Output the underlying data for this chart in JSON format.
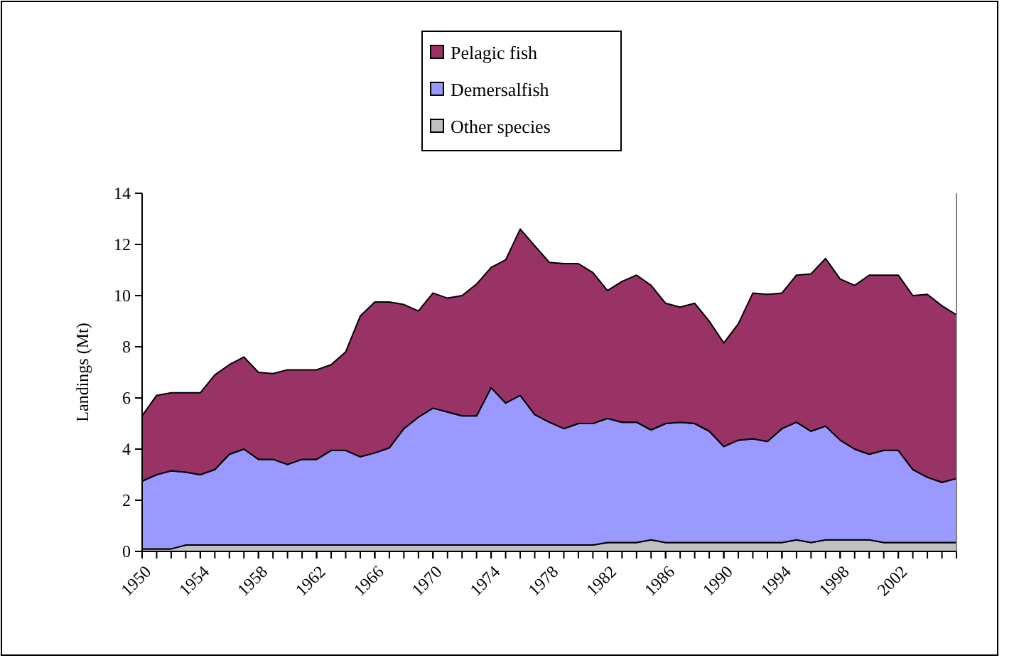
{
  "chart_data": {
    "type": "area",
    "stacked": true,
    "ylabel": "Landings (Mt)",
    "legend": "top",
    "x": [
      1950,
      1951,
      1952,
      1953,
      1954,
      1955,
      1956,
      1957,
      1958,
      1959,
      1960,
      1961,
      1962,
      1963,
      1964,
      1965,
      1966,
      1967,
      1968,
      1969,
      1970,
      1971,
      1972,
      1973,
      1974,
      1975,
      1976,
      1977,
      1978,
      1979,
      1980,
      1981,
      1982,
      1983,
      1984,
      1985,
      1986,
      1987,
      1988,
      1989,
      1990,
      1991,
      1992,
      1993,
      1994,
      1995,
      1996,
      1997,
      1998,
      1999,
      2000,
      2001,
      2002,
      2003,
      2004,
      2005,
      2006
    ],
    "xlim": [
      1950,
      2006
    ],
    "xticks": [
      1950,
      1954,
      1958,
      1962,
      1966,
      1970,
      1974,
      1978,
      1982,
      1986,
      1990,
      1994,
      1998,
      2002
    ],
    "ylim": [
      0,
      14
    ],
    "yticks": [
      0,
      2,
      4,
      6,
      8,
      10,
      12,
      14
    ],
    "series": [
      {
        "name": "Other species",
        "color": "#c0c0c0",
        "values": [
          0.1,
          0.1,
          0.1,
          0.25,
          0.25,
          0.25,
          0.25,
          0.25,
          0.25,
          0.25,
          0.25,
          0.25,
          0.25,
          0.25,
          0.25,
          0.25,
          0.25,
          0.25,
          0.25,
          0.25,
          0.25,
          0.25,
          0.25,
          0.25,
          0.25,
          0.25,
          0.25,
          0.25,
          0.25,
          0.25,
          0.25,
          0.25,
          0.35,
          0.35,
          0.35,
          0.45,
          0.35,
          0.35,
          0.35,
          0.35,
          0.35,
          0.35,
          0.35,
          0.35,
          0.35,
          0.45,
          0.35,
          0.45,
          0.45,
          0.45,
          0.45,
          0.35,
          0.35,
          0.35,
          0.35,
          0.35,
          0.35
        ]
      },
      {
        "name": "Demersalfish",
        "color": "#9999ff",
        "values": [
          2.65,
          2.9,
          3.05,
          2.85,
          2.75,
          2.95,
          3.55,
          3.75,
          3.35,
          3.35,
          3.15,
          3.35,
          3.35,
          3.7,
          3.7,
          3.45,
          3.6,
          3.8,
          4.55,
          5.0,
          5.35,
          5.2,
          5.05,
          5.05,
          6.15,
          5.55,
          5.85,
          5.1,
          4.8,
          4.55,
          4.75,
          4.75,
          4.85,
          4.7,
          4.7,
          4.3,
          4.65,
          4.7,
          4.65,
          4.35,
          3.75,
          4.0,
          4.05,
          3.95,
          4.45,
          4.6,
          4.35,
          4.45,
          3.9,
          3.55,
          3.35,
          3.6,
          3.6,
          2.85,
          2.55,
          2.35,
          2.5
        ]
      },
      {
        "name": "Pelagic fish",
        "color": "#993366",
        "values": [
          2.55,
          3.1,
          3.05,
          3.1,
          3.2,
          3.7,
          3.5,
          3.6,
          3.4,
          3.35,
          3.7,
          3.5,
          3.5,
          3.35,
          3.85,
          5.5,
          5.9,
          5.7,
          4.85,
          4.15,
          4.5,
          4.45,
          4.7,
          5.15,
          4.7,
          5.6,
          6.5,
          6.6,
          6.25,
          6.45,
          6.25,
          5.9,
          5.0,
          5.5,
          5.75,
          5.65,
          4.7,
          4.5,
          4.7,
          4.3,
          4.05,
          4.55,
          5.7,
          5.75,
          5.3,
          5.75,
          6.15,
          6.55,
          6.3,
          6.4,
          7.0,
          6.85,
          6.85,
          6.8,
          7.15,
          6.9,
          6.4
        ]
      }
    ]
  }
}
